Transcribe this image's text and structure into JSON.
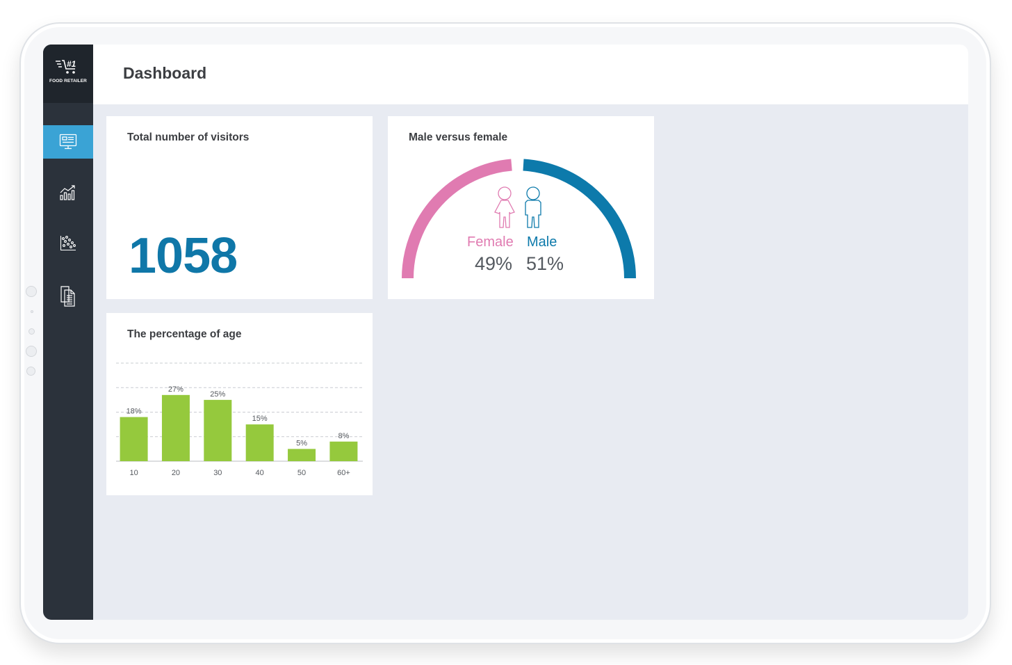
{
  "app": {
    "logo_text": "FOOD RETAILER",
    "logo_icon": "cart-icon"
  },
  "header": {
    "title": "Dashboard"
  },
  "sidebar": {
    "items": [
      {
        "icon": "dashboard-monitor-icon",
        "active": true
      },
      {
        "icon": "bar-chart-icon",
        "active": false
      },
      {
        "icon": "scatter-plot-icon",
        "active": false
      },
      {
        "icon": "documents-icon",
        "active": false
      }
    ]
  },
  "visitors": {
    "title": "Total number of visitors",
    "value": "1058"
  },
  "gender": {
    "title": "Male versus female",
    "female_label": "Female",
    "male_label": "Male",
    "female_pct": "49%",
    "male_pct": "51%",
    "female_color": "#e07bb1",
    "male_color": "#0d7aab"
  },
  "age": {
    "title": "The percentage of age",
    "chart_data": {
      "type": "bar",
      "title": "The percentage of age",
      "categories": [
        "10",
        "20",
        "30",
        "40",
        "50",
        "60+"
      ],
      "values": [
        18,
        27,
        25,
        15,
        5,
        8
      ],
      "labels": [
        "18%",
        "27%",
        "25%",
        "15%",
        "5%",
        "8%"
      ],
      "ylim": [
        0,
        40
      ],
      "grid": true,
      "bar_color": "#95c93d"
    }
  }
}
